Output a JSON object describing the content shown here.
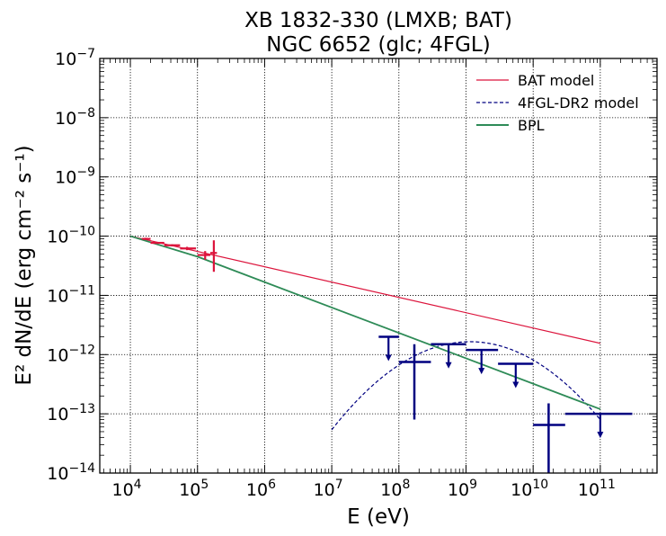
{
  "chart_data": {
    "type": "scatter",
    "title": [
      "XB 1832-330 (LMXB; BAT)",
      "NGC 6652 (glc; 4FGL)"
    ],
    "xlabel": "E (eV)",
    "ylabel": "E² dN/dE (erg cm⁻² s⁻¹)",
    "xscale": "log",
    "yscale": "log",
    "xlim": [
      3500.0,
      700000000000.0
    ],
    "ylim": [
      1e-14,
      1e-07
    ],
    "x_tick_exponents": [
      4,
      5,
      6,
      7,
      8,
      9,
      10,
      11
    ],
    "y_tick_exponents": [
      -14,
      -13,
      -12,
      -11,
      -10,
      -9,
      -8,
      -7
    ],
    "tick_base": "10",
    "grid": true,
    "legend_position": "top-right",
    "legend": [
      {
        "label": "BAT model",
        "color": "#dc143c",
        "style": "solid"
      },
      {
        "label": "4FGL-DR2 model",
        "color": "#000080",
        "style": "dashed"
      },
      {
        "label": "BPL",
        "color": "#2e8b57",
        "style": "solid"
      }
    ],
    "lines": [
      {
        "name": "BAT model",
        "color": "#dc143c",
        "style": "solid",
        "points": [
          [
            10000.0,
            1e-10
          ],
          [
            100000000000.0,
            1.55e-12
          ]
        ]
      },
      {
        "name": "4FGL-DR2 model",
        "color": "#000080",
        "style": "dashed",
        "type": "logparabola",
        "peak_energy": 1150000000.0,
        "peak_flux": 1.65e-12,
        "beta": 0.35,
        "x_range": [
          10000000.0,
          100000000000.0
        ]
      },
      {
        "name": "BPL",
        "color": "#2e8b57",
        "style": "solid",
        "points": [
          [
            10000.0,
            1e-10
          ],
          [
            100000.0,
            4.5e-11
          ],
          [
            100000000000.0,
            1.2e-13
          ]
        ]
      }
    ],
    "bat_points": [
      {
        "x": 17000.0,
        "xlo": 15000.0,
        "xhi": 20000.0,
        "y": 9e-11,
        "ylo": 8.6e-11,
        "yhi": 9.4e-11
      },
      {
        "x": 25000.0,
        "xlo": 20000.0,
        "xhi": 32000.0,
        "y": 7.7e-11,
        "ylo": 7.4e-11,
        "yhi": 8e-11
      },
      {
        "x": 42000.0,
        "xlo": 32000.0,
        "xhi": 55000.0,
        "y": 7e-11,
        "ylo": 6.7e-11,
        "yhi": 7.3e-11
      },
      {
        "x": 70000.0,
        "xlo": 55000.0,
        "xhi": 95000.0,
        "y": 6.2e-11,
        "ylo": 5.8e-11,
        "yhi": 6.6e-11
      },
      {
        "x": 130000.0,
        "xlo": 100000.0,
        "xhi": 155000.0,
        "y": 4.8e-11,
        "ylo": 4e-11,
        "yhi": 5.6e-11
      },
      {
        "x": 175000.0,
        "xlo": 155000.0,
        "xhi": 195000.0,
        "y": 5.2e-11,
        "ylo": 2.5e-11,
        "yhi": 8.5e-11
      }
    ],
    "fermi_points": [
      {
        "x": 70000000.0,
        "xlo": 50000000.0,
        "xhi": 100000000.0,
        "y": 2e-12,
        "upper_limit": true
      },
      {
        "x": 170000000.0,
        "xlo": 100000000.0,
        "xhi": 300000000.0,
        "y": 7.5e-13,
        "ylo": 8e-14,
        "yhi": 1.5e-12
      },
      {
        "x": 550000000.0,
        "xlo": 300000000.0,
        "xhi": 1000000000.0,
        "y": 1.5e-12,
        "upper_limit": true
      },
      {
        "x": 1700000000.0,
        "xlo": 1000000000.0,
        "xhi": 3000000000.0,
        "y": 1.2e-12,
        "upper_limit": true
      },
      {
        "x": 5500000000.0,
        "xlo": 3000000000.0,
        "xhi": 10000000000.0,
        "y": 7e-13,
        "upper_limit": true
      },
      {
        "x": 17000000000.0,
        "xlo": 10000000000.0,
        "xhi": 30000000000.0,
        "y": 6.5e-14,
        "ylo": 1e-14,
        "yhi": 1.5e-13
      },
      {
        "x": 100000000000.0,
        "xlo": 30000000000.0,
        "xhi": 300000000000.0,
        "y": 1e-13,
        "upper_limit": true
      }
    ],
    "colors": {
      "bat": "#dc143c",
      "fermi": "#000080",
      "bpl": "#2e8b57",
      "grid": "#000000"
    }
  }
}
